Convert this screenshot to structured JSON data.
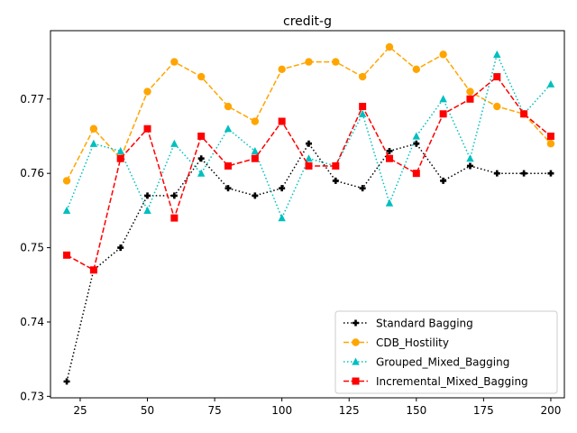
{
  "chart_data": {
    "type": "line",
    "title": "credit-g",
    "xlabel": "",
    "ylabel": "",
    "xlim": [
      13.95,
      205.05
    ],
    "ylim": [
      0.7298,
      0.7792
    ],
    "x_ticks": [
      25,
      50,
      75,
      100,
      125,
      150,
      175,
      200
    ],
    "y_ticks": [
      0.73,
      0.74,
      0.75,
      0.76,
      0.77
    ],
    "legend_position": "lower-right",
    "grid": false,
    "x": [
      20,
      30,
      40,
      50,
      60,
      70,
      80,
      90,
      100,
      110,
      120,
      130,
      140,
      150,
      160,
      170,
      180,
      190,
      200
    ],
    "series": [
      {
        "name": "Standard Bagging",
        "color": "#000000",
        "line_style": "dotted",
        "marker": "plus",
        "values": [
          0.732,
          0.747,
          0.75,
          0.757,
          0.757,
          0.762,
          0.758,
          0.757,
          0.758,
          0.764,
          0.759,
          0.758,
          0.763,
          0.764,
          0.759,
          0.761,
          0.76,
          0.76,
          0.76
        ]
      },
      {
        "name": "CDB_Hostility",
        "color": "#ffa500",
        "line_style": "dashed",
        "marker": "circle",
        "values": [
          0.759,
          0.766,
          0.762,
          0.771,
          0.775,
          0.773,
          0.769,
          0.767,
          0.774,
          0.775,
          0.775,
          0.773,
          0.777,
          0.774,
          0.776,
          0.771,
          0.769,
          0.768,
          0.764
        ]
      },
      {
        "name": "Grouped_Mixed_Bagging",
        "color": "#00bfbf",
        "line_style": "dotted",
        "marker": "triangle",
        "values": [
          0.755,
          0.764,
          0.763,
          0.755,
          0.764,
          0.76,
          0.766,
          0.763,
          0.754,
          0.762,
          0.761,
          0.768,
          0.756,
          0.765,
          0.77,
          0.762,
          0.776,
          0.768,
          0.772
        ]
      },
      {
        "name": "Incremental_Mixed_Bagging",
        "color": "#ff0000",
        "line_style": "dashed",
        "marker": "square",
        "values": [
          0.749,
          0.747,
          0.762,
          0.766,
          0.754,
          0.765,
          0.761,
          0.762,
          0.767,
          0.761,
          0.761,
          0.769,
          0.762,
          0.76,
          0.768,
          0.77,
          0.773,
          0.768,
          0.765
        ]
      }
    ]
  }
}
